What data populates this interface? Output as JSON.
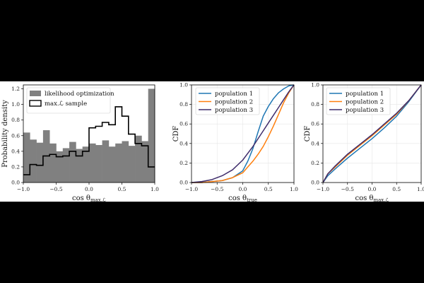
{
  "chart_data": [
    {
      "type": "bar",
      "title": "",
      "xlabel": "cos θmax.ℒ",
      "ylabel": "Probability density",
      "xlim": [
        -1.0,
        1.0
      ],
      "ylim": [
        0.0,
        1.25
      ],
      "xticks": [
        "−1.0",
        "−0.5",
        "0.0",
        "0.5",
        "1.0"
      ],
      "yticks": [
        "0.0",
        "0.2",
        "0.4",
        "0.6",
        "0.8",
        "1.0",
        "1.2"
      ],
      "legend_position": "top-left",
      "bin_edges": [
        -1.0,
        -0.9,
        -0.8,
        -0.7,
        -0.6,
        -0.5,
        -0.4,
        -0.3,
        -0.2,
        -0.1,
        0.0,
        0.1,
        0.2,
        0.3,
        0.4,
        0.5,
        0.6,
        0.7,
        0.8,
        0.9,
        1.0
      ],
      "series": [
        {
          "name": "likelihood optimization",
          "style": "filled",
          "color": "#808080",
          "values": [
            0.64,
            0.55,
            0.51,
            0.67,
            0.5,
            0.4,
            0.44,
            0.52,
            0.43,
            0.46,
            0.5,
            0.48,
            0.54,
            0.46,
            0.5,
            0.53,
            0.47,
            0.6,
            0.53,
            1.2
          ]
        },
        {
          "name": "max.ℒ sample",
          "style": "step",
          "color": "#000000",
          "values": [
            0.1,
            0.23,
            0.22,
            0.34,
            0.36,
            0.33,
            0.34,
            0.4,
            0.34,
            0.4,
            0.7,
            0.72,
            0.77,
            0.74,
            0.97,
            0.85,
            0.62,
            0.5,
            0.47,
            0.2
          ]
        }
      ]
    },
    {
      "type": "line",
      "xlabel": "cos θtrue",
      "ylabel": "CDF",
      "xlim": [
        -1.0,
        1.0
      ],
      "ylim": [
        0.0,
        1.0
      ],
      "xticks": [
        "−1.0",
        "−0.5",
        "0.0",
        "0.5",
        "1.0"
      ],
      "yticks": [
        "0.0",
        "0.2",
        "0.4",
        "0.6",
        "0.8",
        "1.0"
      ],
      "legend_position": "top-left",
      "grid": true,
      "series": [
        {
          "name": "population 1",
          "color": "#1f77b4",
          "x": [
            -1.0,
            -0.8,
            -0.6,
            -0.4,
            -0.2,
            0.0,
            0.1,
            0.2,
            0.3,
            0.4,
            0.5,
            0.6,
            0.7,
            0.8,
            0.9,
            1.0
          ],
          "y": [
            0.0,
            0.0,
            0.01,
            0.02,
            0.05,
            0.12,
            0.22,
            0.35,
            0.52,
            0.68,
            0.78,
            0.86,
            0.92,
            0.96,
            0.99,
            1.0
          ]
        },
        {
          "name": "population 2",
          "color": "#ff7f0e",
          "x": [
            -1.0,
            -0.8,
            -0.6,
            -0.4,
            -0.2,
            0.0,
            0.1,
            0.2,
            0.3,
            0.4,
            0.5,
            0.6,
            0.7,
            0.8,
            0.9,
            1.0
          ],
          "y": [
            0.0,
            0.0,
            0.01,
            0.02,
            0.05,
            0.1,
            0.16,
            0.22,
            0.29,
            0.37,
            0.47,
            0.58,
            0.7,
            0.82,
            0.92,
            1.0
          ]
        },
        {
          "name": "population 3",
          "color": "#3f2c6b",
          "x": [
            -1.0,
            -0.8,
            -0.6,
            -0.4,
            -0.2,
            0.0,
            0.1,
            0.2,
            0.3,
            0.4,
            0.5,
            0.6,
            0.7,
            0.8,
            0.9,
            1.0
          ],
          "y": [
            0.0,
            0.01,
            0.03,
            0.07,
            0.13,
            0.23,
            0.3,
            0.37,
            0.45,
            0.53,
            0.61,
            0.69,
            0.77,
            0.85,
            0.93,
            1.0
          ]
        }
      ]
    },
    {
      "type": "line",
      "xlabel": "cos θmax.ℒ",
      "ylabel": "CDF",
      "xlim": [
        -1.0,
        1.0
      ],
      "ylim": [
        0.0,
        1.0
      ],
      "xticks": [
        "−1.0",
        "−0.5",
        "0.0",
        "0.5",
        "1.0"
      ],
      "yticks": [
        "0.0",
        "0.2",
        "0.4",
        "0.6",
        "0.8",
        "1.0"
      ],
      "legend_position": "top-left",
      "grid": true,
      "series": [
        {
          "name": "population 1",
          "color": "#1f77b4",
          "x": [
            -1.0,
            -0.9,
            -0.75,
            -0.5,
            -0.25,
            0.0,
            0.25,
            0.5,
            0.75,
            1.0
          ],
          "y": [
            0.0,
            0.07,
            0.14,
            0.25,
            0.35,
            0.45,
            0.56,
            0.68,
            0.83,
            1.0
          ]
        },
        {
          "name": "population 2",
          "color": "#ff7f0e",
          "x": [
            -1.0,
            -0.9,
            -0.75,
            -0.5,
            -0.25,
            0.0,
            0.25,
            0.5,
            0.75,
            1.0
          ],
          "y": [
            0.0,
            0.09,
            0.16,
            0.28,
            0.38,
            0.48,
            0.59,
            0.7,
            0.84,
            1.0
          ]
        },
        {
          "name": "population 3",
          "color": "#3f2c6b",
          "x": [
            -1.0,
            -0.9,
            -0.75,
            -0.5,
            -0.25,
            0.0,
            0.25,
            0.5,
            0.75,
            1.0
          ],
          "y": [
            0.0,
            0.09,
            0.17,
            0.29,
            0.39,
            0.49,
            0.6,
            0.71,
            0.84,
            1.0
          ]
        }
      ]
    }
  ]
}
